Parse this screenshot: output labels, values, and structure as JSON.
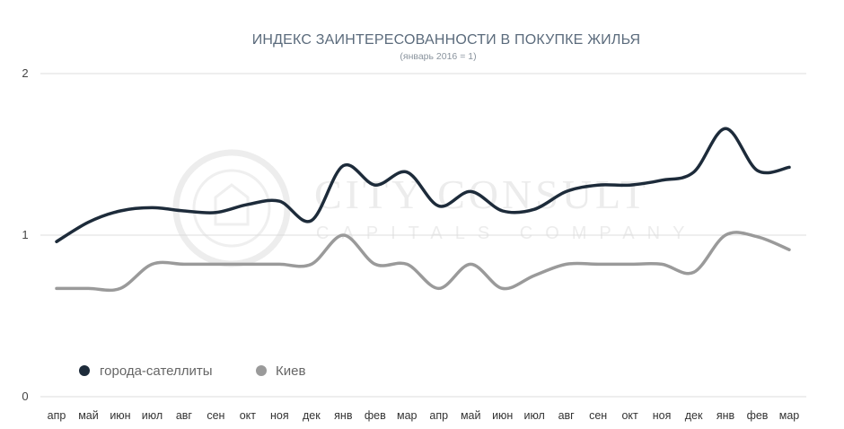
{
  "chart_data": {
    "type": "line",
    "title": "ИНДЕКС ЗАИНТЕРЕСОВАННОСТИ В ПОКУПКЕ ЖИЛЬЯ",
    "subtitle": "(январь 2016 = 1)",
    "categories": [
      "апр",
      "май",
      "июн",
      "июл",
      "авг",
      "сен",
      "окт",
      "ноя",
      "дек",
      "янв",
      "фев",
      "мар",
      "апр",
      "май",
      "июн",
      "июл",
      "авг",
      "сен",
      "окт",
      "ноя",
      "дек",
      "янв",
      "фев",
      "мар"
    ],
    "y_ticks": [
      "0",
      "1",
      "2"
    ],
    "ylim": [
      0,
      2
    ],
    "grid": true,
    "legend_position": "bottom-left",
    "series": [
      {
        "name": "города-сателлиты",
        "color": "#1d2b3a",
        "values": [
          0.96,
          1.08,
          1.15,
          1.17,
          1.15,
          1.14,
          1.19,
          1.21,
          1.09,
          1.43,
          1.31,
          1.39,
          1.18,
          1.27,
          1.15,
          1.16,
          1.27,
          1.31,
          1.31,
          1.34,
          1.39,
          1.66,
          1.4,
          1.42
        ]
      },
      {
        "name": "Киев",
        "color": "#9a9a9a",
        "values": [
          0.67,
          0.67,
          0.67,
          0.82,
          0.82,
          0.82,
          0.82,
          0.82,
          0.82,
          1.0,
          0.82,
          0.82,
          0.67,
          0.82,
          0.67,
          0.75,
          0.82,
          0.82,
          0.82,
          0.82,
          0.77,
          1.0,
          0.99,
          0.91
        ]
      }
    ]
  },
  "watermark": {
    "line1": "CITY CONSULT",
    "line2": "CAPITALS COMPANY"
  }
}
